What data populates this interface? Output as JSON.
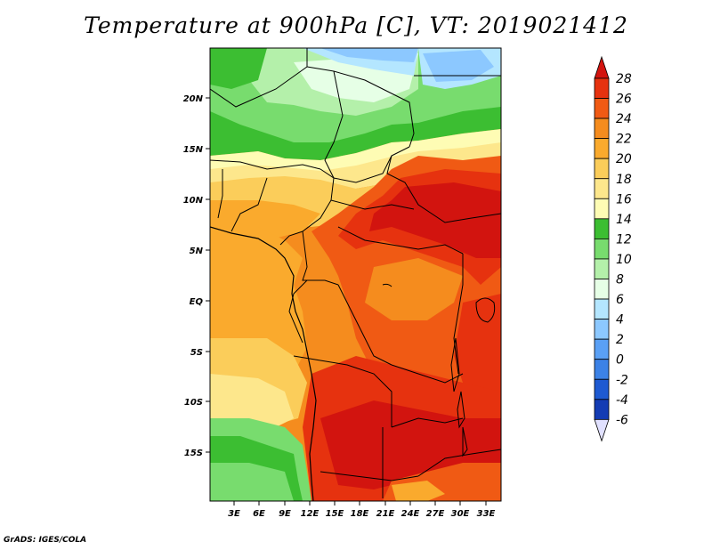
{
  "title": "Temperature at 900hPa [C], VT: 2019021412",
  "credit": "GrADS: IGES/COLA",
  "lat_labels": [
    "20N",
    "15N",
    "10N",
    "5N",
    "EQ",
    "5S",
    "10S",
    "15S"
  ],
  "lon_labels": [
    "3E",
    "6E",
    "9E",
    "12E",
    "15E",
    "18E",
    "21E",
    "24E",
    "27E",
    "30E",
    "33E"
  ],
  "colorbar": {
    "levels": [
      "28",
      "26",
      "24",
      "22",
      "20",
      "18",
      "16",
      "14",
      "12",
      "10",
      "8",
      "6",
      "4",
      "2",
      "0",
      "-2",
      "-4",
      "-6"
    ],
    "colors": [
      "#d2140f",
      "#e6320f",
      "#f05a14",
      "#f58c1e",
      "#faaa2d",
      "#fbcd5a",
      "#fde78c",
      "#fefcb4",
      "#3cbe32",
      "#78dc6e",
      "#b4f0aa",
      "#e6ffe6",
      "#b4e6ff",
      "#8cc8ff",
      "#5aa0f5",
      "#3c82e6",
      "#1e5ad2",
      "#143cb4",
      "#0a0a78"
    ],
    "top_color": "#d2140f",
    "bottom_color": "#e1e1ff"
  }
}
